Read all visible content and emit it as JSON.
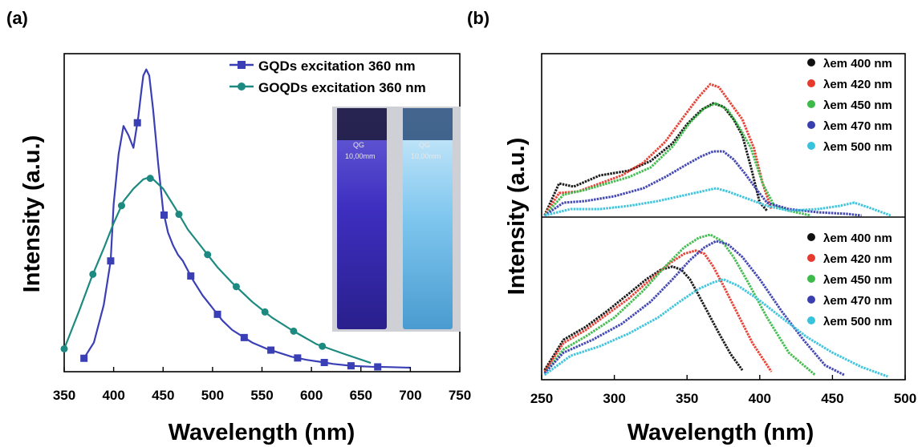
{
  "panels": {
    "a": "(a)",
    "b": "(b)"
  },
  "colors": {
    "gqds": "#3a3fb6",
    "goqds": "#1c8a80",
    "em400": "#111111",
    "em420": "#e63a2e",
    "em450": "#3dbb4a",
    "em470": "#3a3fb0",
    "em500": "#38c3dc"
  },
  "inset": {
    "cuvette_brand": "QG",
    "cuvette_size": "10,00mm"
  },
  "chart_data": [
    {
      "type": "line",
      "panel": "(a)",
      "xlabel": "Wavelength (nm)",
      "ylabel": "Intensity (a.u.)",
      "xlim": [
        350,
        750
      ],
      "ylim": [
        0,
        1.0
      ],
      "xticks": [
        "350",
        "400",
        "450",
        "500",
        "550",
        "600",
        "650",
        "700",
        "750"
      ],
      "legend_position": "top-right",
      "series": [
        {
          "name": "GQDs excitation 360 nm",
          "marker": "square",
          "x": [
            370,
            380,
            390,
            397,
            400,
            405,
            410,
            415,
            420,
            425,
            428,
            430,
            433,
            436,
            440,
            445,
            450,
            455,
            460,
            465,
            470,
            480,
            490,
            500,
            510,
            520,
            530,
            540,
            555,
            565,
            580,
            595,
            610,
            622,
            640,
            660,
            677,
            700
          ],
          "y": [
            0.03,
            0.08,
            0.2,
            0.34,
            0.52,
            0.68,
            0.77,
            0.74,
            0.7,
            0.8,
            0.88,
            0.93,
            0.95,
            0.93,
            0.82,
            0.65,
            0.5,
            0.43,
            0.39,
            0.36,
            0.34,
            0.28,
            0.23,
            0.19,
            0.15,
            0.12,
            0.1,
            0.08,
            0.06,
            0.05,
            0.035,
            0.025,
            0.018,
            0.012,
            0.006,
            0.003,
            0.002,
            0.0
          ]
        },
        {
          "name": "GOQDs excitation 360 nm",
          "marker": "circle",
          "x": [
            350,
            365,
            378,
            390,
            400,
            410,
            420,
            430,
            435,
            440,
            450,
            462,
            475,
            490,
            505,
            520,
            540,
            560,
            580,
            605,
            632,
            660
          ],
          "y": [
            0.06,
            0.18,
            0.29,
            0.38,
            0.46,
            0.53,
            0.57,
            0.6,
            0.605,
            0.6,
            0.57,
            0.51,
            0.44,
            0.38,
            0.32,
            0.27,
            0.21,
            0.16,
            0.12,
            0.075,
            0.045,
            0.015
          ]
        }
      ]
    },
    {
      "type": "scatter",
      "panel": "(b) top",
      "xlabel": "Wavelength (nm)",
      "ylabel": "Intensity (a.u.)",
      "xlim": [
        250,
        500
      ],
      "ylim": [
        0,
        1.0
      ],
      "legend_position": "top-right",
      "series": [
        {
          "name": "λem 400 nm",
          "x": [
            252,
            262,
            272,
            290,
            310,
            325,
            340,
            350,
            360,
            368,
            375,
            382,
            388,
            394,
            400,
            405
          ],
          "y": [
            0.0,
            0.2,
            0.18,
            0.25,
            0.28,
            0.34,
            0.45,
            0.57,
            0.66,
            0.7,
            0.68,
            0.6,
            0.5,
            0.3,
            0.08,
            0.03
          ]
        },
        {
          "name": "λem 420 nm",
          "x": [
            252,
            262,
            275,
            290,
            305,
            320,
            335,
            348,
            358,
            366,
            372,
            380,
            388,
            396,
            402,
            408
          ],
          "y": [
            0.0,
            0.14,
            0.15,
            0.2,
            0.25,
            0.33,
            0.46,
            0.62,
            0.74,
            0.82,
            0.8,
            0.7,
            0.6,
            0.42,
            0.2,
            0.04
          ]
        },
        {
          "name": "λem 450 nm",
          "x": [
            252,
            265,
            280,
            295,
            310,
            325,
            340,
            352,
            362,
            370,
            378,
            386,
            394,
            402,
            410,
            420,
            435
          ],
          "y": [
            0.0,
            0.13,
            0.16,
            0.2,
            0.24,
            0.3,
            0.43,
            0.58,
            0.67,
            0.7,
            0.66,
            0.55,
            0.42,
            0.2,
            0.06,
            0.03,
            0.0
          ]
        },
        {
          "name": "λem 470 nm",
          "x": [
            252,
            265,
            280,
            300,
            320,
            335,
            350,
            360,
            368,
            375,
            382,
            390,
            398,
            405,
            420,
            440,
            460,
            470
          ],
          "y": [
            0.0,
            0.08,
            0.09,
            0.12,
            0.17,
            0.24,
            0.32,
            0.37,
            0.4,
            0.4,
            0.35,
            0.26,
            0.16,
            0.08,
            0.04,
            0.02,
            0.01,
            0.0
          ]
        },
        {
          "name": "λem 500 nm",
          "x": [
            252,
            270,
            290,
            310,
            330,
            345,
            360,
            370,
            378,
            390,
            405,
            420,
            440,
            455,
            465,
            475,
            490
          ],
          "y": [
            0.0,
            0.04,
            0.04,
            0.06,
            0.09,
            0.12,
            0.15,
            0.17,
            0.15,
            0.11,
            0.06,
            0.03,
            0.04,
            0.06,
            0.08,
            0.05,
            0.0
          ]
        }
      ]
    },
    {
      "type": "scatter",
      "panel": "(b) bottom",
      "xlabel": "Wavelength (nm)",
      "ylabel": "Intensity (a.u.)",
      "xlim": [
        250,
        500
      ],
      "ylim": [
        0,
        1.0
      ],
      "xticks": [
        "250",
        "300",
        "350",
        "400",
        "450",
        "500"
      ],
      "legend_position": "top-right",
      "series": [
        {
          "name": "λem 400 nm",
          "x": [
            252,
            265,
            280,
            295,
            310,
            322,
            332,
            340,
            346,
            352,
            358,
            365,
            372,
            380,
            388
          ],
          "y": [
            0.05,
            0.24,
            0.32,
            0.42,
            0.53,
            0.62,
            0.68,
            0.7,
            0.68,
            0.62,
            0.52,
            0.4,
            0.28,
            0.15,
            0.05
          ]
        },
        {
          "name": "λem 420 nm",
          "x": [
            252,
            265,
            280,
            295,
            310,
            325,
            338,
            348,
            356,
            362,
            368,
            375,
            385,
            395,
            408
          ],
          "y": [
            0.04,
            0.22,
            0.3,
            0.4,
            0.5,
            0.62,
            0.72,
            0.78,
            0.8,
            0.78,
            0.7,
            0.58,
            0.4,
            0.22,
            0.04
          ]
        },
        {
          "name": "λem 450 nm",
          "x": [
            252,
            265,
            280,
            300,
            320,
            335,
            348,
            358,
            366,
            374,
            382,
            392,
            405,
            420,
            438
          ],
          "y": [
            0.03,
            0.18,
            0.26,
            0.38,
            0.55,
            0.7,
            0.82,
            0.88,
            0.9,
            0.86,
            0.76,
            0.6,
            0.38,
            0.16,
            0.02
          ]
        },
        {
          "name": "λem 470 nm",
          "x": [
            252,
            265,
            285,
            305,
            325,
            340,
            352,
            362,
            370,
            378,
            388,
            400,
            415,
            430,
            445,
            458
          ],
          "y": [
            0.03,
            0.16,
            0.24,
            0.34,
            0.48,
            0.62,
            0.74,
            0.82,
            0.86,
            0.84,
            0.76,
            0.62,
            0.42,
            0.24,
            0.08,
            0.02
          ]
        },
        {
          "name": "λem 500 nm",
          "x": [
            252,
            270,
            290,
            310,
            330,
            345,
            358,
            368,
            375,
            385,
            398,
            415,
            432,
            450,
            470,
            488
          ],
          "y": [
            0.02,
            0.14,
            0.2,
            0.28,
            0.38,
            0.48,
            0.56,
            0.6,
            0.62,
            0.58,
            0.5,
            0.38,
            0.26,
            0.16,
            0.07,
            0.01
          ]
        }
      ]
    }
  ]
}
